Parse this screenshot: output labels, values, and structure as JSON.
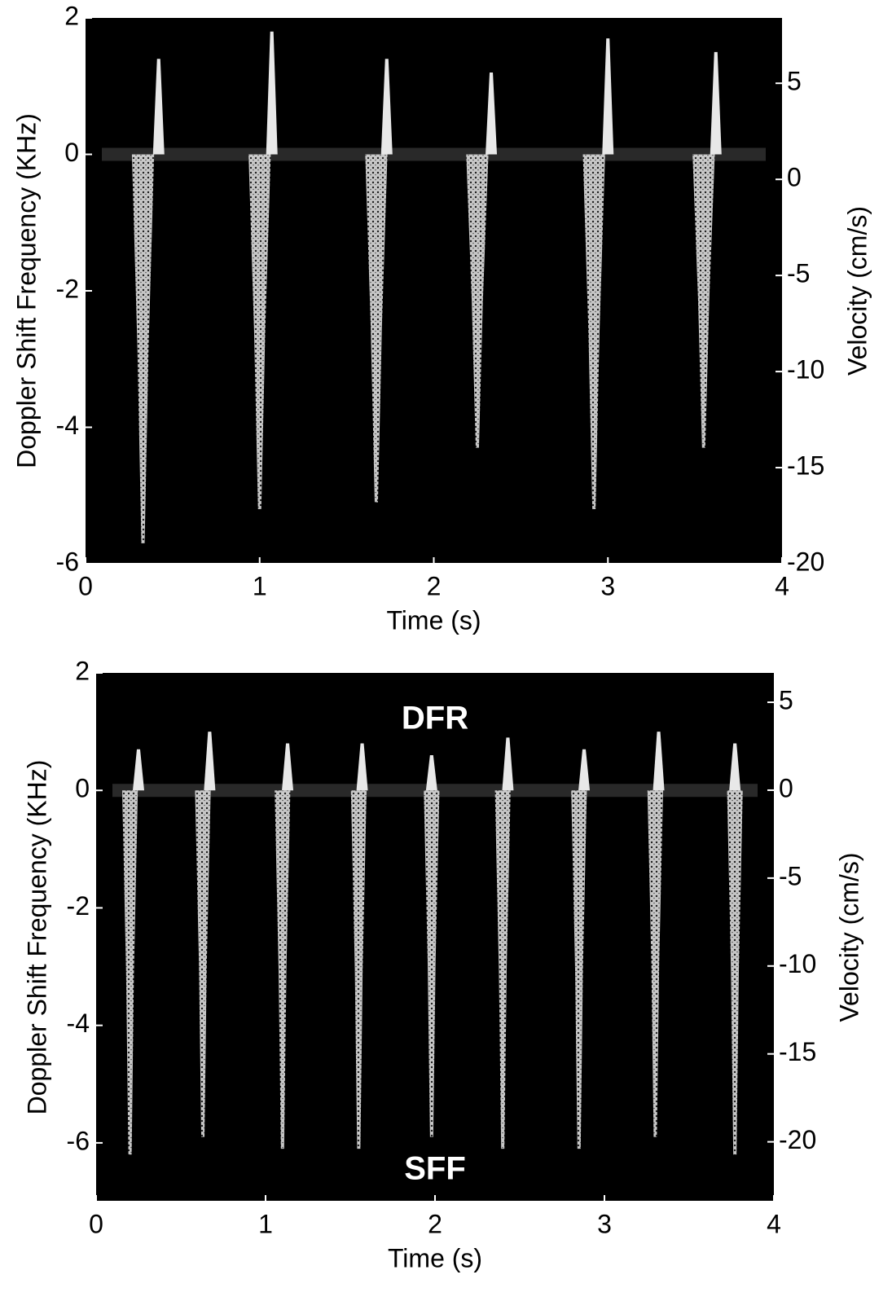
{
  "chart_data": [
    {
      "type": "spectrogram",
      "x_label": "Time (s)",
      "y_label": "Doppler Shift Frequency (KHz)",
      "y2_label": "Velocity (cm/s)",
      "xlim": [
        0,
        4
      ],
      "xticks": [
        0,
        1,
        2,
        3,
        4
      ],
      "ylim": [
        -6,
        2
      ],
      "yticks": [
        -6,
        -4,
        -2,
        0,
        2
      ],
      "y2lim": [
        -20,
        8.4
      ],
      "y2ticks": [
        -20,
        -15,
        -10,
        -5,
        0,
        5
      ],
      "x": [
        0.33,
        1.0,
        1.67,
        2.25,
        2.92,
        3.55
      ],
      "values": [
        -5.7,
        -5.2,
        -5.1,
        -4.3,
        -5.2,
        -4.3
      ],
      "peak_x": [
        0.42,
        1.07,
        1.73,
        2.33,
        3.0,
        3.62
      ],
      "peak_values": [
        1.4,
        1.8,
        1.4,
        1.2,
        1.7,
        1.5
      ],
      "color": "#e8e8e8",
      "background": "#000000"
    },
    {
      "type": "spectrogram",
      "x_label": "Time (s)",
      "y_label": "Doppler Shift Frequency (KHz)",
      "y2_label": "Velocity (cm/s)",
      "annotations": [
        "DFR",
        "SFF"
      ],
      "xlim": [
        0,
        4
      ],
      "xticks": [
        0,
        1,
        2,
        3,
        4
      ],
      "ylim": [
        -7,
        2
      ],
      "yticks": [
        -6,
        -4,
        -2,
        0,
        2
      ],
      "y2lim": [
        -23.4,
        6.67
      ],
      "y2ticks": [
        -20,
        -15,
        -10,
        -5,
        0,
        5
      ],
      "x": [
        0.2,
        0.63,
        1.1,
        1.55,
        1.98,
        2.4,
        2.85,
        3.3,
        3.77
      ],
      "values": [
        -6.2,
        -5.9,
        -6.1,
        -6.1,
        -5.9,
        -6.1,
        -6.1,
        -5.9,
        -6.2
      ],
      "peak_x": [
        0.25,
        0.67,
        1.13,
        1.57,
        1.98,
        2.43,
        2.88,
        3.32,
        3.77
      ],
      "peak_values": [
        0.7,
        1.0,
        0.8,
        0.8,
        0.6,
        0.9,
        0.7,
        1.0,
        0.8
      ],
      "color": "#e8e8e8",
      "background": "#000000"
    }
  ]
}
